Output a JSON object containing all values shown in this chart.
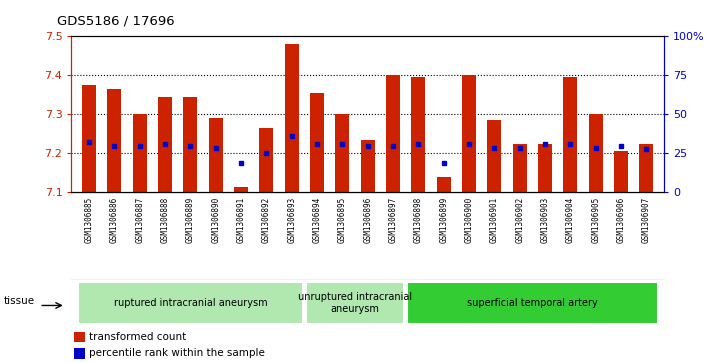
{
  "title": "GDS5186 / 17696",
  "samples": [
    "GSM1306885",
    "GSM1306886",
    "GSM1306887",
    "GSM1306888",
    "GSM1306889",
    "GSM1306890",
    "GSM1306891",
    "GSM1306892",
    "GSM1306893",
    "GSM1306894",
    "GSM1306895",
    "GSM1306896",
    "GSM1306897",
    "GSM1306898",
    "GSM1306899",
    "GSM1306900",
    "GSM1306901",
    "GSM1306902",
    "GSM1306903",
    "GSM1306904",
    "GSM1306905",
    "GSM1306906",
    "GSM1306907"
  ],
  "transformed_count": [
    7.375,
    7.365,
    7.3,
    7.345,
    7.345,
    7.29,
    7.113,
    7.265,
    7.48,
    7.355,
    7.3,
    7.235,
    7.4,
    7.395,
    7.14,
    7.4,
    7.285,
    7.225,
    7.225,
    7.395,
    7.3,
    7.205,
    7.225
  ],
  "percentile_rank": [
    7.23,
    7.22,
    7.22,
    7.225,
    7.22,
    7.215,
    7.175,
    7.2,
    7.245,
    7.225,
    7.225,
    7.22,
    7.22,
    7.225,
    7.175,
    7.225,
    7.215,
    7.215,
    7.225,
    7.225,
    7.215,
    7.22,
    7.21
  ],
  "ylim": [
    7.1,
    7.5
  ],
  "yticks_left": [
    7.1,
    7.2,
    7.3,
    7.4,
    7.5
  ],
  "yticks_right": [
    0,
    25,
    50,
    75,
    100
  ],
  "right_ylim": [
    0,
    100
  ],
  "group_ranges": [
    {
      "gs": 0,
      "ge": 8,
      "label": "ruptured intracranial aneurysm",
      "color": "#b0e8b0"
    },
    {
      "gs": 9,
      "ge": 12,
      "label": "unruptured intracranial\naneurysm",
      "color": "#b0e8b0"
    },
    {
      "gs": 13,
      "ge": 22,
      "label": "superficial temporal artery",
      "color": "#33cc33"
    }
  ],
  "bar_color": "#cc2200",
  "dot_color": "#0000cc",
  "bar_width": 0.55,
  "plot_bg": "#ffffff",
  "xtick_bg": "#d8d8d8",
  "left_axis_color": "#cc2200",
  "right_axis_color": "#0000cc"
}
